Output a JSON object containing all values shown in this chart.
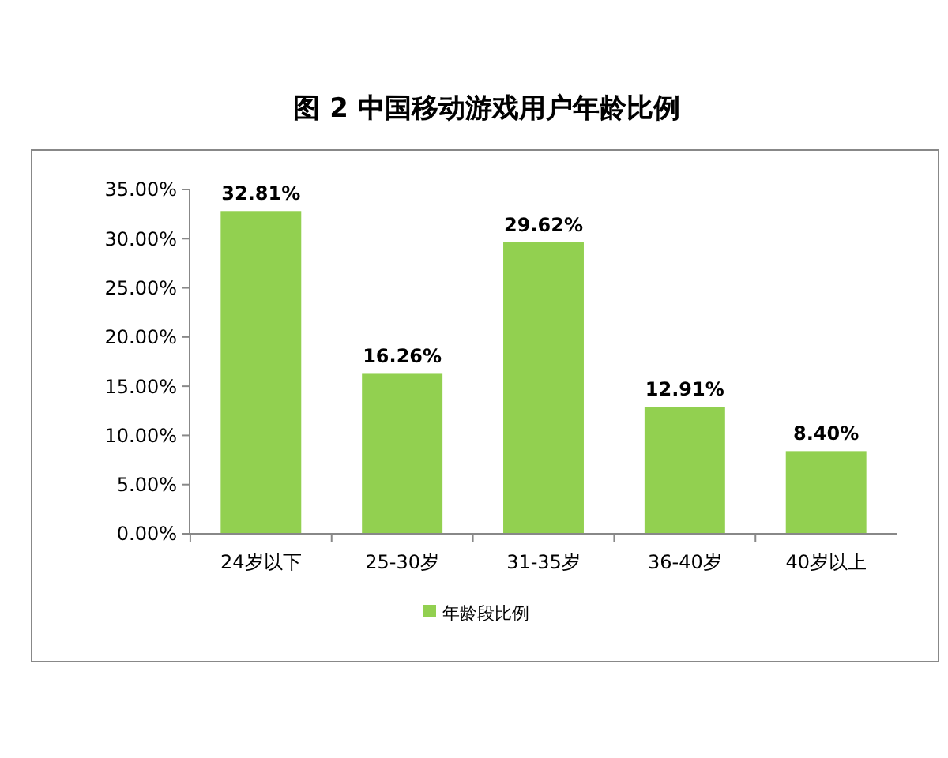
{
  "chart_data": {
    "type": "bar",
    "title": "图 2  中国移动游戏用户年龄比例",
    "categories": [
      "24岁以下",
      "25-30岁",
      "31-35岁",
      "36-40岁",
      "40岁以上"
    ],
    "series": [
      {
        "name": "年龄段比例",
        "color": "#92d050",
        "values": [
          32.81,
          16.26,
          29.62,
          12.91,
          8.4
        ],
        "value_labels": [
          "32.81%",
          "16.26%",
          "29.62%",
          "12.91%",
          "8.40%"
        ]
      }
    ],
    "ylim": [
      0,
      35
    ],
    "yticks": [
      {
        "value": 0,
        "label": "0.00%"
      },
      {
        "value": 5,
        "label": "5.00%"
      },
      {
        "value": 10,
        "label": "10.00%"
      },
      {
        "value": 15,
        "label": "15.00%"
      },
      {
        "value": 20,
        "label": "20.00%"
      },
      {
        "value": 25,
        "label": "25.00%"
      },
      {
        "value": 30,
        "label": "30.00%"
      },
      {
        "value": 35,
        "label": "35.00%"
      }
    ],
    "grid": false,
    "legend": "bottom"
  }
}
